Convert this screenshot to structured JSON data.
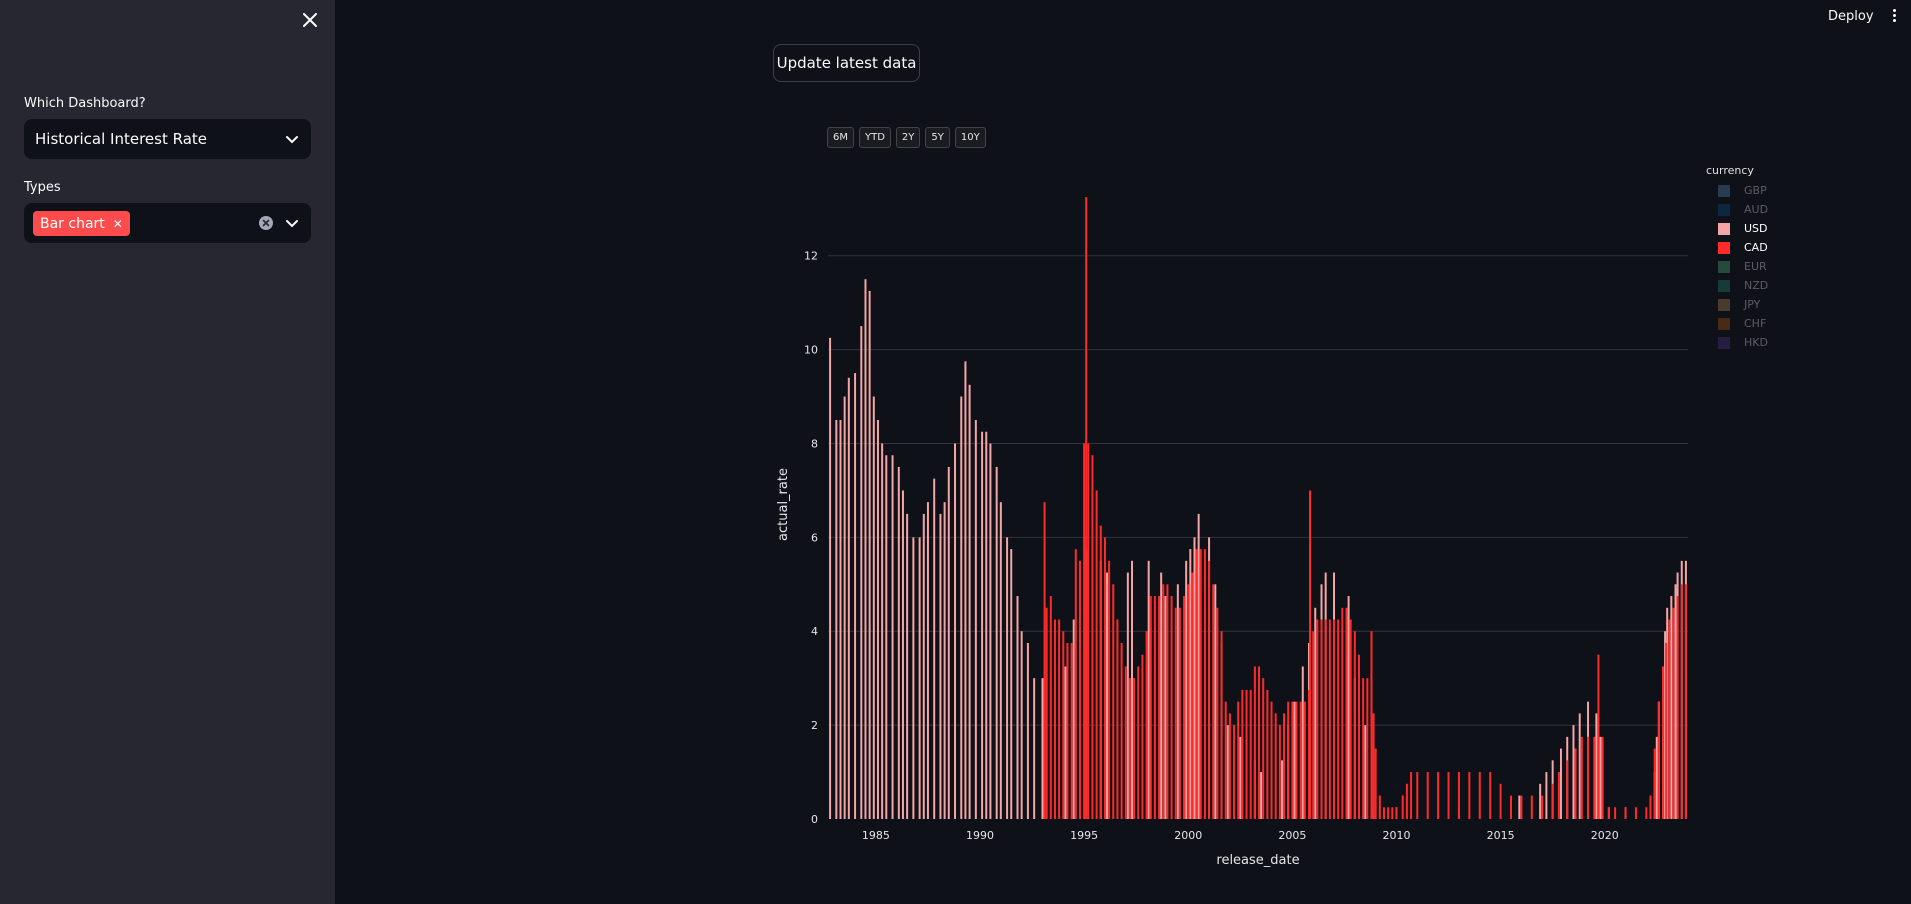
{
  "sidebar": {
    "dashboard_label": "Which Dashboard?",
    "dashboard_value": "Historical Interest Rate",
    "types_label": "Types",
    "types_tag": "Bar chart"
  },
  "header": {
    "deploy": "Deploy"
  },
  "main": {
    "update_button": "Update latest data",
    "range_buttons": [
      "6M",
      "YTD",
      "2Y",
      "5Y",
      "10Y"
    ]
  },
  "legend": {
    "title": "currency",
    "items": [
      {
        "label": "GBP",
        "color": "#3e5f7f",
        "active": false
      },
      {
        "label": "AUD",
        "color": "#0d3a66",
        "active": false
      },
      {
        "label": "USD",
        "color": "#f4a5a5",
        "active": true
      },
      {
        "label": "CAD",
        "color": "#ff2b2b",
        "active": true
      },
      {
        "label": "EUR",
        "color": "#3a7a5a",
        "active": false
      },
      {
        "label": "NZD",
        "color": "#1f5e5a",
        "active": false
      },
      {
        "label": "JPY",
        "color": "#7a6040",
        "active": false
      },
      {
        "label": "CHF",
        "color": "#7a4010",
        "active": false
      },
      {
        "label": "HKD",
        "color": "#3a2a66",
        "active": false
      }
    ]
  },
  "chart_data": {
    "type": "bar",
    "xlabel": "release_date",
    "ylabel": "actual_rate",
    "xlim": [
      1982.7,
      2024.0
    ],
    "ylim": [
      0,
      13.4
    ],
    "xticks": [
      1985,
      1990,
      1995,
      2000,
      2005,
      2010,
      2015,
      2020
    ],
    "yticks": [
      0,
      2,
      4,
      6,
      8,
      10,
      12
    ],
    "grid": true,
    "legend_position": "right",
    "series": [
      {
        "name": "USD",
        "color": "#f4a5a5",
        "points": [
          [
            1982.8,
            10.25
          ],
          [
            1983.1,
            8.5
          ],
          [
            1983.3,
            8.5
          ],
          [
            1983.5,
            9.0
          ],
          [
            1983.7,
            9.4
          ],
          [
            1984.0,
            9.5
          ],
          [
            1984.3,
            10.5
          ],
          [
            1984.5,
            11.5
          ],
          [
            1984.7,
            11.25
          ],
          [
            1984.9,
            9.0
          ],
          [
            1985.1,
            8.5
          ],
          [
            1985.3,
            8.0
          ],
          [
            1985.5,
            7.75
          ],
          [
            1985.8,
            7.75
          ],
          [
            1986.1,
            7.5
          ],
          [
            1986.3,
            7.0
          ],
          [
            1986.5,
            6.5
          ],
          [
            1986.8,
            6.0
          ],
          [
            1987.1,
            6.0
          ],
          [
            1987.3,
            6.5
          ],
          [
            1987.5,
            6.75
          ],
          [
            1987.8,
            7.25
          ],
          [
            1988.1,
            6.5
          ],
          [
            1988.3,
            6.75
          ],
          [
            1988.5,
            7.5
          ],
          [
            1988.8,
            8.0
          ],
          [
            1989.1,
            9.0
          ],
          [
            1989.3,
            9.75
          ],
          [
            1989.5,
            9.25
          ],
          [
            1989.8,
            8.5
          ],
          [
            1990.1,
            8.25
          ],
          [
            1990.3,
            8.25
          ],
          [
            1990.5,
            8.0
          ],
          [
            1990.8,
            7.5
          ],
          [
            1991.0,
            6.75
          ],
          [
            1991.3,
            6.0
          ],
          [
            1991.5,
            5.75
          ],
          [
            1991.8,
            4.75
          ],
          [
            1992.0,
            4.0
          ],
          [
            1992.3,
            3.75
          ],
          [
            1992.6,
            3.0
          ],
          [
            1993.0,
            3.0
          ],
          [
            1994.1,
            3.25
          ],
          [
            1994.5,
            4.25
          ],
          [
            1995.1,
            5.75
          ],
          [
            1995.8,
            5.5
          ],
          [
            1996.1,
            5.25
          ],
          [
            1997.1,
            5.25
          ],
          [
            1997.3,
            5.5
          ],
          [
            1998.1,
            5.5
          ],
          [
            1998.7,
            5.25
          ],
          [
            1998.9,
            4.75
          ],
          [
            1999.5,
            5.0
          ],
          [
            1999.9,
            5.5
          ],
          [
            2000.1,
            5.75
          ],
          [
            2000.3,
            6.0
          ],
          [
            2000.5,
            6.5
          ],
          [
            2001.0,
            6.0
          ],
          [
            2001.3,
            5.0
          ],
          [
            2001.6,
            3.75
          ],
          [
            2001.9,
            2.0
          ],
          [
            2002.5,
            1.75
          ],
          [
            2003.2,
            1.25
          ],
          [
            2003.5,
            1.0
          ],
          [
            2004.5,
            1.25
          ],
          [
            2004.8,
            2.0
          ],
          [
            2005.1,
            2.5
          ],
          [
            2005.5,
            3.25
          ],
          [
            2005.8,
            3.75
          ],
          [
            2006.1,
            4.5
          ],
          [
            2006.4,
            5.0
          ],
          [
            2006.6,
            5.25
          ],
          [
            2007.0,
            5.25
          ],
          [
            2007.7,
            4.75
          ],
          [
            2008.0,
            3.0
          ],
          [
            2008.2,
            2.25
          ],
          [
            2008.5,
            2.0
          ],
          [
            2008.9,
            0.25
          ],
          [
            2010.0,
            0.25
          ],
          [
            2013.0,
            0.25
          ],
          [
            2015.9,
            0.5
          ],
          [
            2016.9,
            0.75
          ],
          [
            2017.2,
            1.0
          ],
          [
            2017.5,
            1.25
          ],
          [
            2017.9,
            1.5
          ],
          [
            2018.2,
            1.75
          ],
          [
            2018.5,
            2.0
          ],
          [
            2018.8,
            2.25
          ],
          [
            2019.2,
            2.5
          ],
          [
            2019.6,
            2.25
          ],
          [
            2019.8,
            1.75
          ],
          [
            2020.2,
            0.25
          ],
          [
            2021.0,
            0.25
          ],
          [
            2022.2,
            0.5
          ],
          [
            2022.4,
            1.0
          ],
          [
            2022.5,
            1.75
          ],
          [
            2022.6,
            2.5
          ],
          [
            2022.8,
            3.25
          ],
          [
            2022.9,
            4.0
          ],
          [
            2023.0,
            4.5
          ],
          [
            2023.2,
            4.75
          ],
          [
            2023.4,
            5.0
          ],
          [
            2023.5,
            5.25
          ],
          [
            2023.7,
            5.5
          ],
          [
            2023.9,
            5.5
          ]
        ]
      },
      {
        "name": "CAD",
        "color": "#ff2b2b",
        "points": [
          [
            1993.1,
            6.75
          ],
          [
            1993.2,
            4.5
          ],
          [
            1993.4,
            4.75
          ],
          [
            1993.6,
            4.25
          ],
          [
            1993.8,
            4.25
          ],
          [
            1994.0,
            4.0
          ],
          [
            1994.2,
            3.75
          ],
          [
            1994.4,
            3.75
          ],
          [
            1994.6,
            5.75
          ],
          [
            1994.8,
            5.5
          ],
          [
            1995.0,
            8.0
          ],
          [
            1995.1,
            13.25
          ],
          [
            1995.2,
            8.0
          ],
          [
            1995.4,
            7.75
          ],
          [
            1995.6,
            7.0
          ],
          [
            1995.8,
            6.25
          ],
          [
            1996.0,
            6.0
          ],
          [
            1996.2,
            5.5
          ],
          [
            1996.4,
            5.0
          ],
          [
            1996.6,
            4.25
          ],
          [
            1996.8,
            3.75
          ],
          [
            1997.0,
            3.25
          ],
          [
            1997.2,
            3.0
          ],
          [
            1997.4,
            3.0
          ],
          [
            1997.6,
            3.25
          ],
          [
            1997.8,
            3.5
          ],
          [
            1998.0,
            4.0
          ],
          [
            1998.2,
            4.75
          ],
          [
            1998.4,
            4.75
          ],
          [
            1998.6,
            4.75
          ],
          [
            1998.8,
            5.0
          ],
          [
            1999.0,
            5.0
          ],
          [
            1999.2,
            4.75
          ],
          [
            1999.4,
            4.5
          ],
          [
            1999.6,
            4.5
          ],
          [
            1999.8,
            4.75
          ],
          [
            2000.0,
            5.0
          ],
          [
            2000.2,
            5.25
          ],
          [
            2000.4,
            5.75
          ],
          [
            2000.6,
            5.75
          ],
          [
            2000.8,
            5.75
          ],
          [
            2001.0,
            5.5
          ],
          [
            2001.2,
            5.0
          ],
          [
            2001.4,
            4.5
          ],
          [
            2001.6,
            4.0
          ],
          [
            2001.8,
            2.5
          ],
          [
            2002.0,
            2.25
          ],
          [
            2002.2,
            2.0
          ],
          [
            2002.4,
            2.5
          ],
          [
            2002.6,
            2.75
          ],
          [
            2002.8,
            2.75
          ],
          [
            2003.0,
            2.75
          ],
          [
            2003.2,
            3.25
          ],
          [
            2003.4,
            3.25
          ],
          [
            2003.6,
            3.0
          ],
          [
            2003.8,
            2.75
          ],
          [
            2004.0,
            2.5
          ],
          [
            2004.2,
            2.25
          ],
          [
            2004.4,
            2.0
          ],
          [
            2004.6,
            2.25
          ],
          [
            2004.8,
            2.5
          ],
          [
            2005.0,
            2.5
          ],
          [
            2005.2,
            2.5
          ],
          [
            2005.4,
            2.5
          ],
          [
            2005.6,
            2.5
          ],
          [
            2005.8,
            2.75
          ],
          [
            2005.85,
            7.0
          ],
          [
            2006.0,
            4.0
          ],
          [
            2006.2,
            4.25
          ],
          [
            2006.4,
            4.25
          ],
          [
            2006.6,
            4.25
          ],
          [
            2006.8,
            4.25
          ],
          [
            2007.0,
            4.25
          ],
          [
            2007.2,
            4.25
          ],
          [
            2007.4,
            4.5
          ],
          [
            2007.6,
            4.5
          ],
          [
            2007.8,
            4.25
          ],
          [
            2008.0,
            4.0
          ],
          [
            2008.2,
            3.5
          ],
          [
            2008.4,
            3.0
          ],
          [
            2008.6,
            3.0
          ],
          [
            2008.8,
            4.0
          ],
          [
            2008.9,
            2.25
          ],
          [
            2009.0,
            1.5
          ],
          [
            2009.2,
            0.5
          ],
          [
            2009.4,
            0.25
          ],
          [
            2009.6,
            0.25
          ],
          [
            2009.8,
            0.25
          ],
          [
            2010.0,
            0.25
          ],
          [
            2010.3,
            0.5
          ],
          [
            2010.5,
            0.75
          ],
          [
            2010.7,
            1.0
          ],
          [
            2011.0,
            1.0
          ],
          [
            2011.5,
            1.0
          ],
          [
            2012.0,
            1.0
          ],
          [
            2012.5,
            1.0
          ],
          [
            2013.0,
            1.0
          ],
          [
            2013.5,
            1.0
          ],
          [
            2014.0,
            1.0
          ],
          [
            2014.5,
            1.0
          ],
          [
            2015.0,
            0.75
          ],
          [
            2015.5,
            0.5
          ],
          [
            2016.0,
            0.5
          ],
          [
            2016.5,
            0.5
          ],
          [
            2017.0,
            0.5
          ],
          [
            2017.5,
            0.75
          ],
          [
            2017.8,
            1.0
          ],
          [
            2018.2,
            1.25
          ],
          [
            2018.6,
            1.5
          ],
          [
            2018.9,
            1.75
          ],
          [
            2019.2,
            1.75
          ],
          [
            2019.5,
            1.75
          ],
          [
            2019.7,
            3.5
          ],
          [
            2019.9,
            1.75
          ],
          [
            2020.2,
            0.25
          ],
          [
            2020.5,
            0.25
          ],
          [
            2021.0,
            0.25
          ],
          [
            2021.5,
            0.25
          ],
          [
            2022.0,
            0.25
          ],
          [
            2022.2,
            0.5
          ],
          [
            2022.4,
            1.5
          ],
          [
            2022.6,
            2.5
          ],
          [
            2022.8,
            3.25
          ],
          [
            2022.95,
            3.75
          ],
          [
            2023.1,
            4.25
          ],
          [
            2023.3,
            4.5
          ],
          [
            2023.5,
            4.75
          ],
          [
            2023.7,
            5.0
          ],
          [
            2023.9,
            5.0
          ]
        ]
      }
    ]
  }
}
